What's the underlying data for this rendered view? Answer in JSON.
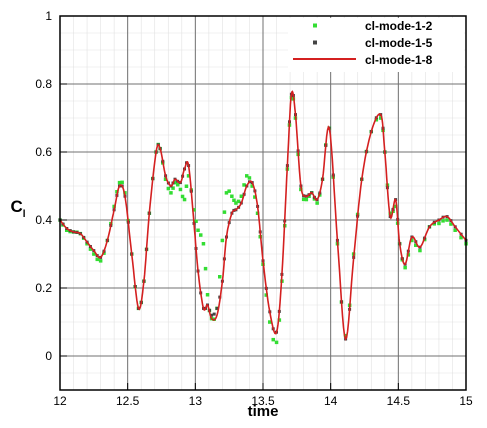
{
  "chart_data": {
    "type": "line",
    "xlabel": "time",
    "ylabel_main": "C",
    "ylabel_sub": "l",
    "xlim": [
      12,
      15
    ],
    "ylim": [
      -0.1,
      1.0
    ],
    "x_ticks": [
      12,
      12.5,
      13,
      13.5,
      14,
      14.5,
      15
    ],
    "x_tick_labels": [
      "12",
      "12.5",
      "13",
      "13.5",
      "14",
      "14.5",
      "15"
    ],
    "y_ticks": [
      0,
      0.2,
      0.4,
      0.6,
      0.8,
      1.0
    ],
    "y_tick_labels": [
      "0",
      "0.2",
      "0.4",
      "0.6",
      "0.8",
      "1"
    ],
    "grid": true,
    "legend_position": "top-right",
    "series": [
      {
        "name": "cl-mode-1-2",
        "style": "markers",
        "color": "#33dd33",
        "x": [
          12.0,
          12.05,
          12.1,
          12.15,
          12.2,
          12.25,
          12.3,
          12.35,
          12.4,
          12.44,
          12.48,
          12.53,
          12.58,
          12.62,
          12.66,
          12.71,
          12.74,
          12.78,
          12.82,
          12.85,
          12.89,
          12.92,
          12.95,
          12.99,
          13.02,
          13.06,
          13.09,
          13.12,
          13.16,
          13.2,
          13.23,
          13.27,
          13.3,
          13.34,
          13.38,
          13.42,
          13.46,
          13.5,
          13.55,
          13.6,
          13.64,
          13.68,
          13.71,
          13.74,
          13.78,
          13.82,
          13.86,
          13.9,
          13.94,
          13.99,
          14.05,
          14.11,
          14.17,
          14.23,
          14.3,
          14.37,
          14.4,
          14.44,
          14.48,
          14.51,
          14.55,
          14.6,
          14.66,
          14.73,
          14.8,
          14.86,
          14.92,
          15.0
        ],
        "y": [
          0.4,
          0.37,
          0.365,
          0.36,
          0.33,
          0.3,
          0.28,
          0.34,
          0.44,
          0.51,
          0.48,
          0.3,
          0.14,
          0.22,
          0.42,
          0.6,
          0.61,
          0.52,
          0.48,
          0.51,
          0.49,
          0.46,
          0.53,
          0.43,
          0.37,
          0.33,
          0.18,
          0.11,
          0.14,
          0.34,
          0.48,
          0.47,
          0.45,
          0.47,
          0.53,
          0.5,
          0.42,
          0.27,
          0.1,
          0.04,
          0.22,
          0.55,
          0.76,
          0.7,
          0.49,
          0.46,
          0.48,
          0.45,
          0.52,
          0.67,
          0.33,
          0.06,
          0.3,
          0.52,
          0.66,
          0.7,
          0.6,
          0.42,
          0.44,
          0.33,
          0.26,
          0.34,
          0.31,
          0.38,
          0.39,
          0.4,
          0.37,
          0.33
        ]
      },
      {
        "name": "cl-mode-1-5",
        "style": "markers",
        "color": "#444444",
        "x": [
          12.0,
          12.05,
          12.1,
          12.15,
          12.2,
          12.25,
          12.3,
          12.35,
          12.4,
          12.44,
          12.48,
          12.53,
          12.58,
          12.62,
          12.66,
          12.71,
          12.74,
          12.78,
          12.82,
          12.85,
          12.89,
          12.92,
          12.95,
          12.99,
          13.02,
          13.06,
          13.09,
          13.12,
          13.16,
          13.2,
          13.23,
          13.27,
          13.3,
          13.34,
          13.38,
          13.42,
          13.46,
          13.5,
          13.55,
          13.6,
          13.64,
          13.68,
          13.71,
          13.74,
          13.78,
          13.82,
          13.86,
          13.9,
          13.94,
          13.99,
          14.05,
          14.11,
          14.17,
          14.23,
          14.3,
          14.37,
          14.4,
          14.44,
          14.48,
          14.51,
          14.55,
          14.6,
          14.66,
          14.73,
          14.8,
          14.86,
          14.92,
          15.0
        ],
        "y": [
          0.4,
          0.375,
          0.365,
          0.36,
          0.335,
          0.31,
          0.29,
          0.34,
          0.43,
          0.5,
          0.47,
          0.3,
          0.14,
          0.22,
          0.42,
          0.6,
          0.61,
          0.53,
          0.5,
          0.52,
          0.51,
          0.55,
          0.56,
          0.39,
          0.25,
          0.14,
          0.15,
          0.12,
          0.14,
          0.22,
          0.35,
          0.42,
          0.43,
          0.45,
          0.5,
          0.51,
          0.44,
          0.28,
          0.13,
          0.07,
          0.24,
          0.56,
          0.77,
          0.71,
          0.5,
          0.47,
          0.48,
          0.46,
          0.52,
          0.67,
          0.34,
          0.05,
          0.29,
          0.52,
          0.66,
          0.71,
          0.6,
          0.41,
          0.46,
          0.33,
          0.27,
          0.35,
          0.32,
          0.38,
          0.4,
          0.41,
          0.38,
          0.34
        ]
      },
      {
        "name": "cl-mode-1-8",
        "style": "line",
        "color": "#d42020",
        "x": [
          12.0,
          12.05,
          12.1,
          12.15,
          12.2,
          12.25,
          12.3,
          12.35,
          12.4,
          12.44,
          12.48,
          12.53,
          12.58,
          12.62,
          12.66,
          12.71,
          12.74,
          12.78,
          12.82,
          12.85,
          12.89,
          12.92,
          12.95,
          12.99,
          13.02,
          13.06,
          13.09,
          13.12,
          13.16,
          13.2,
          13.23,
          13.27,
          13.3,
          13.34,
          13.38,
          13.42,
          13.46,
          13.5,
          13.55,
          13.6,
          13.64,
          13.68,
          13.71,
          13.74,
          13.78,
          13.82,
          13.86,
          13.9,
          13.94,
          13.99,
          14.05,
          14.11,
          14.17,
          14.23,
          14.3,
          14.37,
          14.4,
          14.44,
          14.48,
          14.51,
          14.55,
          14.6,
          14.66,
          14.73,
          14.8,
          14.86,
          14.92,
          15.0
        ],
        "y": [
          0.4,
          0.375,
          0.365,
          0.36,
          0.335,
          0.31,
          0.29,
          0.34,
          0.43,
          0.5,
          0.47,
          0.3,
          0.14,
          0.22,
          0.42,
          0.6,
          0.61,
          0.53,
          0.5,
          0.52,
          0.51,
          0.55,
          0.56,
          0.39,
          0.25,
          0.14,
          0.15,
          0.11,
          0.12,
          0.22,
          0.35,
          0.42,
          0.43,
          0.45,
          0.5,
          0.51,
          0.44,
          0.28,
          0.13,
          0.07,
          0.24,
          0.56,
          0.77,
          0.71,
          0.5,
          0.47,
          0.48,
          0.46,
          0.52,
          0.67,
          0.34,
          0.05,
          0.29,
          0.52,
          0.66,
          0.71,
          0.6,
          0.41,
          0.46,
          0.33,
          0.27,
          0.35,
          0.32,
          0.38,
          0.4,
          0.41,
          0.38,
          0.34
        ]
      }
    ]
  }
}
